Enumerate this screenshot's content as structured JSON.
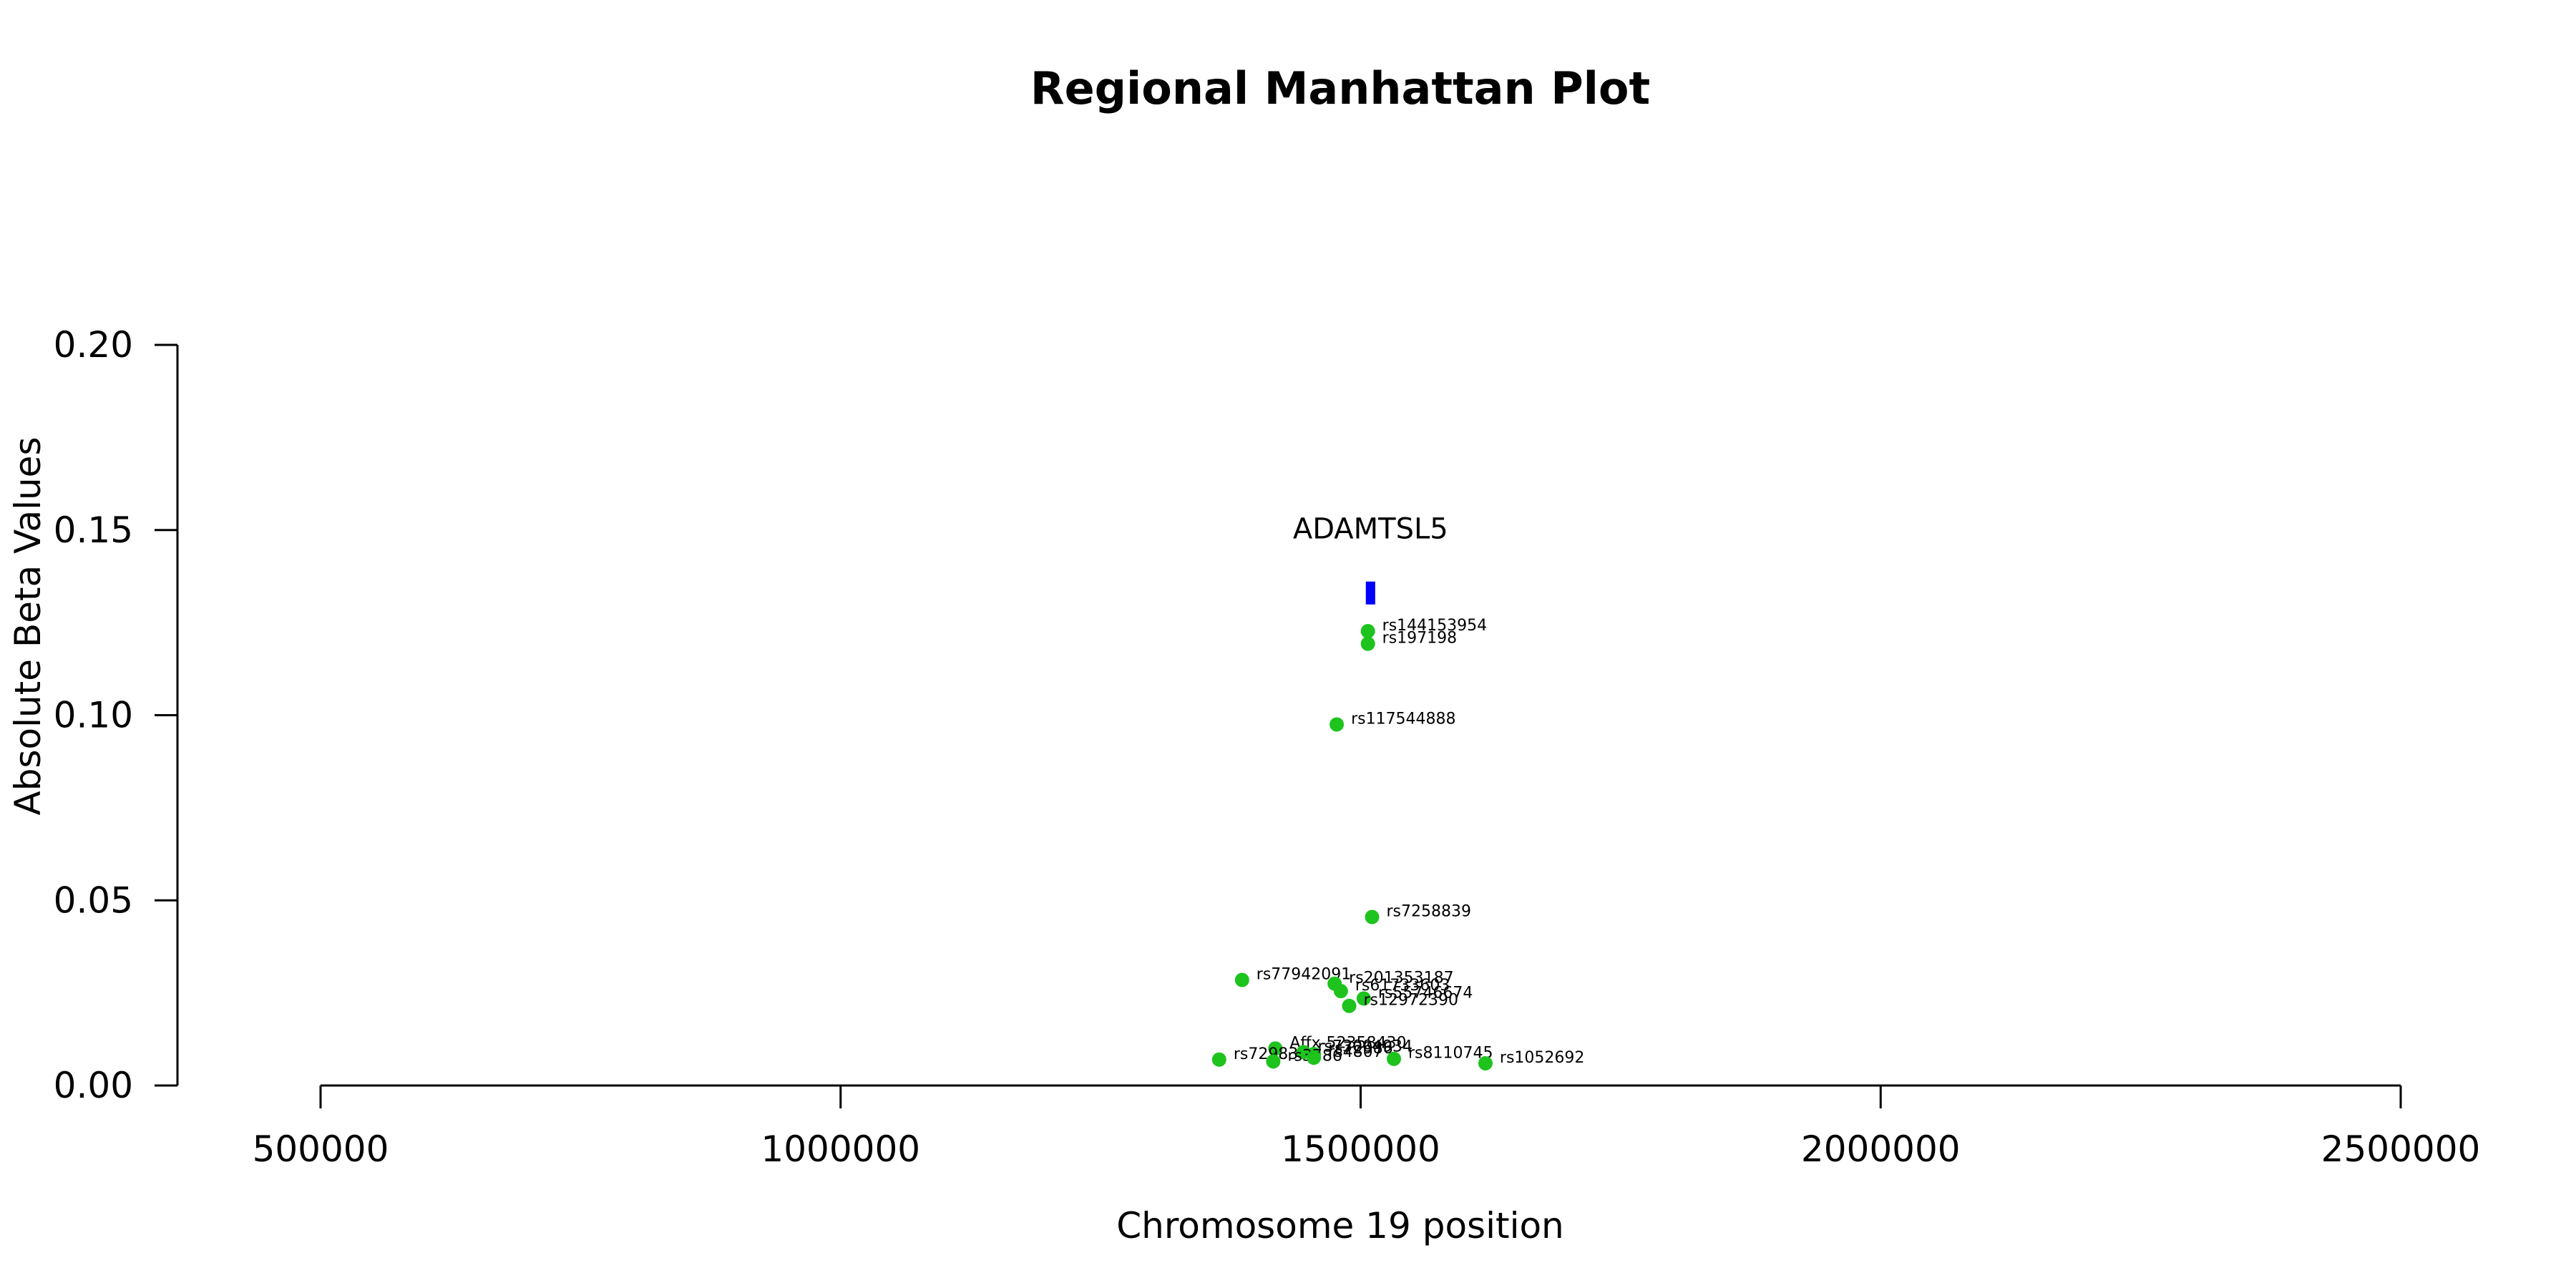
{
  "chart_data": {
    "type": "scatter",
    "title": "Regional Manhattan Plot",
    "xlabel": "Chromosome 19 position",
    "ylabel": "Absolute Beta Values",
    "xlim": [
      500000,
      2500000
    ],
    "ylim": [
      0,
      0.2
    ],
    "x_ticks": [
      500000,
      1000000,
      1500000,
      2000000,
      2500000
    ],
    "x_tick_labels": [
      "500000",
      "1000000",
      "1500000",
      "2000000",
      "2500000"
    ],
    "y_ticks": [
      0,
      0.05,
      0.1,
      0.15,
      0.2
    ],
    "y_tick_labels": [
      "0.00",
      "0.05",
      "0.10",
      "0.15",
      "0.20"
    ],
    "point_color": "#1ec31e",
    "gene_color": "#0000ff",
    "points": [
      {
        "label": "rs144153954",
        "x": 1507000,
        "y": 0.1227
      },
      {
        "label": "rs197198",
        "x": 1507000,
        "y": 0.1193
      },
      {
        "label": "rs117544888",
        "x": 1477000,
        "y": 0.0975
      },
      {
        "label": "rs7258839",
        "x": 1511000,
        "y": 0.0455
      },
      {
        "label": "rs77942091",
        "x": 1386000,
        "y": 0.0285
      },
      {
        "label": "rs201353187",
        "x": 1475000,
        "y": 0.0275
      },
      {
        "label": "rs61733603",
        "x": 1481000,
        "y": 0.0255
      },
      {
        "label": "rs55746674",
        "x": 1503000,
        "y": 0.0235
      },
      {
        "label": "rs12972390",
        "x": 1489000,
        "y": 0.0215
      },
      {
        "label": "Affx-52358430",
        "x": 1418000,
        "y": 0.01
      },
      {
        "label": "rs73004934",
        "x": 1445000,
        "y": 0.009
      },
      {
        "label": "rs72986",
        "x": 1455000,
        "y": 0.0085
      },
      {
        "label": "rs72983",
        "x": 1364000,
        "y": 0.007
      },
      {
        "label": "rs3786",
        "x": 1416000,
        "y": 0.0065
      },
      {
        "label": "rs4807",
        "x": 1455000,
        "y": 0.0075
      },
      {
        "label": "rs8110745",
        "x": 1532000,
        "y": 0.0072
      },
      {
        "label": "rs1052692",
        "x": 1620000,
        "y": 0.006
      }
    ],
    "genes": [
      {
        "name": "ADAMTSL5",
        "start": 1505000,
        "end": 1514000,
        "y": 0.133
      }
    ]
  }
}
